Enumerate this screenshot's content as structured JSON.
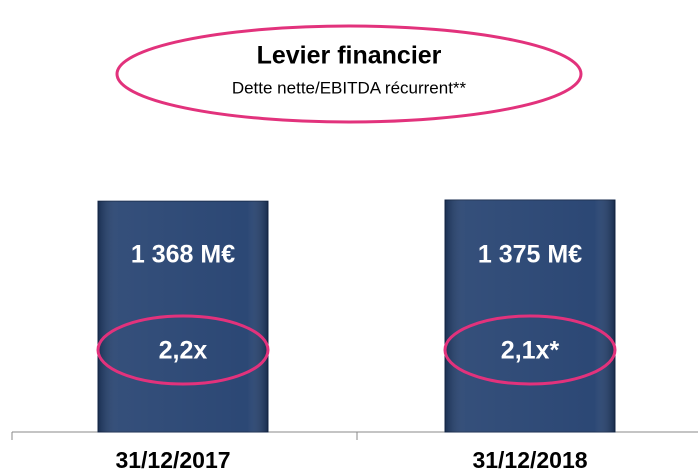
{
  "chart_data": {
    "type": "bar",
    "title": "Levier financier",
    "subtitle": "Dette nette/EBITDA récurrent**",
    "categories": [
      "31/12/2017",
      "31/12/2018"
    ],
    "values": [
      1368,
      1375
    ],
    "value_labels": [
      "1 368 M€",
      "1 375 M€"
    ],
    "annotations": [
      "2,2x",
      "2,1x*"
    ],
    "color": "#23406f",
    "highlight_color": "#e2327c"
  }
}
